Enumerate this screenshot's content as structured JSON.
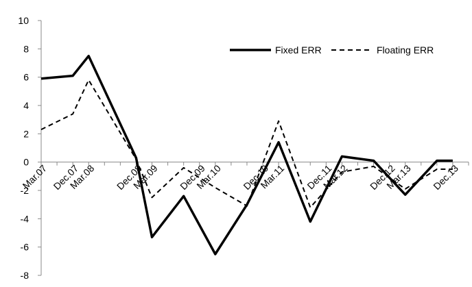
{
  "chart_data": {
    "type": "line",
    "title": "",
    "xlabel": "",
    "ylabel": "",
    "ylim": [
      -8,
      10
    ],
    "yticks": [
      10,
      8,
      6,
      4,
      2,
      0,
      -2,
      -4,
      -6,
      -8
    ],
    "ytick_labels": [
      "10",
      "8",
      "6",
      "4",
      "2",
      "0",
      "-2",
      "-4",
      "-6",
      "-8"
    ],
    "grid": false,
    "legend_position": "top-right",
    "categories": [
      "Mar.07",
      "Dec.07",
      "Mar.08",
      "Dec.08",
      "Mar.09",
      "Dec.09",
      "Mar.10",
      "Dec.10",
      "Mar.11",
      "Dec.11",
      "Mar.12",
      "Dec.12",
      "Mar.13",
      "Dec.13"
    ],
    "x_positions": [
      0,
      2,
      3,
      6,
      7,
      10,
      11,
      14,
      15,
      18,
      19,
      22,
      23,
      26
    ],
    "series": [
      {
        "name": "Fixed ERR",
        "style": "solid",
        "color": "#000000",
        "x": [
          0,
          2,
          3,
          6,
          7,
          9,
          11,
          13,
          15,
          17,
          19,
          21,
          23,
          25,
          26
        ],
        "values": [
          5.9,
          6.1,
          7.5,
          0.3,
          -5.3,
          -2.4,
          -6.5,
          -3.0,
          1.4,
          -4.2,
          0.4,
          0.1,
          -2.3,
          0.1,
          0.1
        ]
      },
      {
        "name": "Floating ERR",
        "style": "dashed",
        "color": "#000000",
        "x": [
          0,
          2,
          3,
          6,
          7,
          9,
          11,
          13,
          15,
          17,
          19,
          21,
          23,
          25,
          26
        ],
        "values": [
          2.3,
          3.4,
          5.8,
          0.2,
          -2.5,
          -0.4,
          -1.8,
          -3.1,
          2.9,
          -3.2,
          -0.7,
          -0.3,
          -1.9,
          -0.5,
          -0.5
        ]
      }
    ]
  }
}
